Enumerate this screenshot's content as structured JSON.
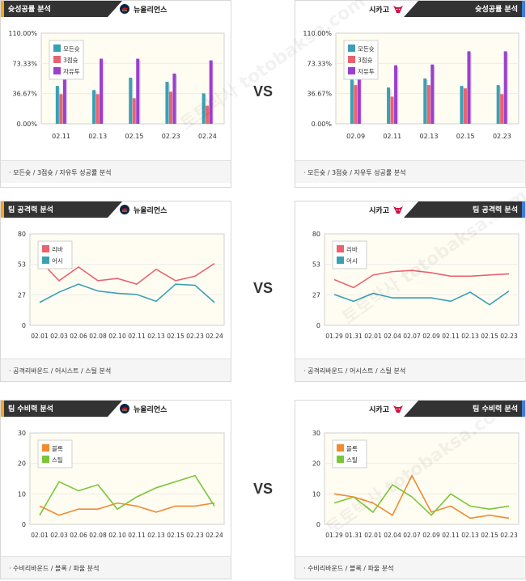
{
  "colors": {
    "header_dark": "#333333",
    "left_accent": "#f5a623",
    "right_accent": "#3d7fe0",
    "plot_bg": "#fffdf2",
    "teal": "#3aa0b5",
    "red": "#e8636f",
    "purple": "#9b3fd0",
    "orange": "#f28a30",
    "green": "#7cc53a"
  },
  "vs_label": "VS",
  "watermark": "토토박사 totobaksa.com",
  "sections": {
    "shooting": {
      "title": "슛성공률 분석",
      "left_team": "뉴올리언스",
      "right_team": "시카고",
      "footer": "모든슛 / 3점슛 / 자유투 성공률 분석"
    },
    "offense": {
      "title": "팀 공격력 분석",
      "left_team": "뉴올리언스",
      "right_team": "시카고",
      "footer": "공격리바운드 / 어시스트 / 스틸 분석"
    },
    "defense": {
      "title": "팀 수비력 분석",
      "left_team": "뉴올리언스",
      "right_team": "시카고",
      "footer": "수비리바운드 / 블록 / 파울 분석"
    }
  },
  "chart_data": [
    {
      "id": "shooting-left",
      "type": "bar",
      "categories": [
        "02.11",
        "02.13",
        "02.15",
        "02.23",
        "02.24"
      ],
      "yticks": [
        "110.00%",
        "73.33%",
        "36.67%",
        "0.00%"
      ],
      "ylim": [
        0,
        110
      ],
      "legend_placement": "top-left",
      "series": [
        {
          "name": "모든슛",
          "color": "#3aa0b5",
          "values": [
            46,
            41,
            56,
            51,
            37
          ]
        },
        {
          "name": "3점슛",
          "color": "#e8636f",
          "values": [
            36,
            36,
            31,
            39,
            22
          ]
        },
        {
          "name": "자유투",
          "color": "#9b3fd0",
          "values": [
            86,
            79,
            79,
            61,
            77
          ]
        }
      ]
    },
    {
      "id": "shooting-right",
      "type": "bar",
      "categories": [
        "02.09",
        "02.11",
        "02.13",
        "02.15",
        "02.23"
      ],
      "yticks": [
        "110.00%",
        "73.33%",
        "36.67%",
        "0.00%"
      ],
      "ylim": [
        0,
        110
      ],
      "legend_placement": "top-left",
      "series": [
        {
          "name": "모든슛",
          "color": "#3aa0b5",
          "values": [
            54,
            44,
            55,
            46,
            47
          ]
        },
        {
          "name": "3점슛",
          "color": "#e8636f",
          "values": [
            47,
            33,
            47,
            43,
            36
          ]
        },
        {
          "name": "자유투",
          "color": "#9b3fd0",
          "values": [
            90,
            71,
            72,
            88,
            88
          ]
        }
      ]
    },
    {
      "id": "offense-left",
      "type": "line",
      "categories": [
        "02.01",
        "02.03",
        "02.06",
        "02.08",
        "02.10",
        "02.11",
        "02.13",
        "02.15",
        "02.23",
        "02.24"
      ],
      "yticks": [
        "80",
        "53",
        "27",
        "0"
      ],
      "ylim": [
        0,
        80
      ],
      "legend_placement": "top-left",
      "series": [
        {
          "name": "리바",
          "color": "#e8636f",
          "values": [
            57,
            39,
            51,
            39,
            41,
            36,
            49,
            39,
            43,
            54
          ]
        },
        {
          "name": "어시",
          "color": "#3aa0b5",
          "values": [
            20,
            29,
            36,
            30,
            28,
            27,
            21,
            36,
            35,
            20
          ]
        }
      ]
    },
    {
      "id": "offense-right",
      "type": "line",
      "categories": [
        "01.29",
        "01.31",
        "02.01",
        "02.04",
        "02.07",
        "02.09",
        "02.11",
        "02.13",
        "02.15",
        "02.23"
      ],
      "yticks": [
        "80",
        "53",
        "27",
        "0"
      ],
      "ylim": [
        0,
        80
      ],
      "legend_placement": "top-left",
      "series": [
        {
          "name": "리바",
          "color": "#e8636f",
          "values": [
            40,
            33,
            44,
            47,
            48,
            46,
            43,
            43,
            44,
            45
          ]
        },
        {
          "name": "어시",
          "color": "#3aa0b5",
          "values": [
            27,
            21,
            28,
            24,
            24,
            24,
            21,
            29,
            18,
            30
          ]
        }
      ]
    },
    {
      "id": "defense-left",
      "type": "line",
      "categories": [
        "02.01",
        "02.03",
        "02.06",
        "02.08",
        "02.10",
        "02.11",
        "02.13",
        "02.15",
        "02.23",
        "02.24"
      ],
      "yticks": [
        "30",
        "20",
        "10",
        "0"
      ],
      "ylim": [
        0,
        30
      ],
      "legend_placement": "top-left",
      "series": [
        {
          "name": "블록",
          "color": "#f28a30",
          "values": [
            6,
            3,
            5,
            5,
            7,
            6,
            4,
            6,
            6,
            7
          ]
        },
        {
          "name": "스틸",
          "color": "#7cc53a",
          "values": [
            3,
            14,
            11,
            13,
            5,
            9,
            12,
            14,
            16,
            6
          ]
        }
      ]
    },
    {
      "id": "defense-right",
      "type": "line",
      "categories": [
        "01.29",
        "01.31",
        "02.01",
        "02.04",
        "02.07",
        "02.09",
        "02.11",
        "02.13",
        "02.15",
        "02.23"
      ],
      "yticks": [
        "30",
        "20",
        "10",
        "0"
      ],
      "ylim": [
        0,
        30
      ],
      "legend_placement": "top-left",
      "series": [
        {
          "name": "블록",
          "color": "#f28a30",
          "values": [
            10,
            9,
            7,
            3,
            16,
            4,
            6,
            2,
            3,
            2
          ]
        },
        {
          "name": "스틸",
          "color": "#7cc53a",
          "values": [
            7,
            9,
            4,
            13,
            9,
            3,
            10,
            6,
            5,
            6
          ]
        }
      ]
    }
  ]
}
